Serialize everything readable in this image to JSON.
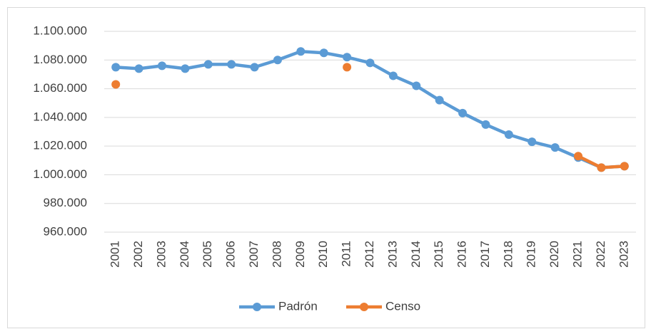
{
  "chart_data": {
    "type": "line",
    "categories": [
      "2001",
      "2002",
      "2003",
      "2004",
      "2005",
      "2006",
      "2007",
      "2008",
      "2009",
      "2010",
      "2011",
      "2012",
      "2013",
      "2014",
      "2015",
      "2016",
      "2017",
      "2018",
      "2019",
      "2020",
      "2021",
      "2022",
      "2023"
    ],
    "series": [
      {
        "name": "Padrón",
        "color": "#5b9bd5",
        "values": [
          1075000,
          1074000,
          1076000,
          1074000,
          1077000,
          1077000,
          1075000,
          1080000,
          1086000,
          1085000,
          1082000,
          1078000,
          1069000,
          1062000,
          1052000,
          1043000,
          1035000,
          1028000,
          1023000,
          1019000,
          1012000,
          1005000,
          1006000
        ]
      },
      {
        "name": "Censo",
        "color": "#ed7d31",
        "values": [
          1063000,
          null,
          null,
          null,
          null,
          null,
          null,
          null,
          null,
          null,
          1075000,
          null,
          null,
          null,
          null,
          null,
          null,
          null,
          null,
          null,
          1013000,
          1005000,
          1006000
        ]
      }
    ],
    "ylim": [
      960000,
      1100000
    ],
    "yticks": [
      {
        "value": 960000,
        "label": "960.000"
      },
      {
        "value": 980000,
        "label": "980.000"
      },
      {
        "value": 1000000,
        "label": "1.000.000"
      },
      {
        "value": 1020000,
        "label": "1.020.000"
      },
      {
        "value": 1040000,
        "label": "1.040.000"
      },
      {
        "value": 1060000,
        "label": "1.060.000"
      },
      {
        "value": 1080000,
        "label": "1.080.000"
      },
      {
        "value": 1100000,
        "label": "1.100.000"
      }
    ],
    "grid": true,
    "legend": "bottom"
  }
}
